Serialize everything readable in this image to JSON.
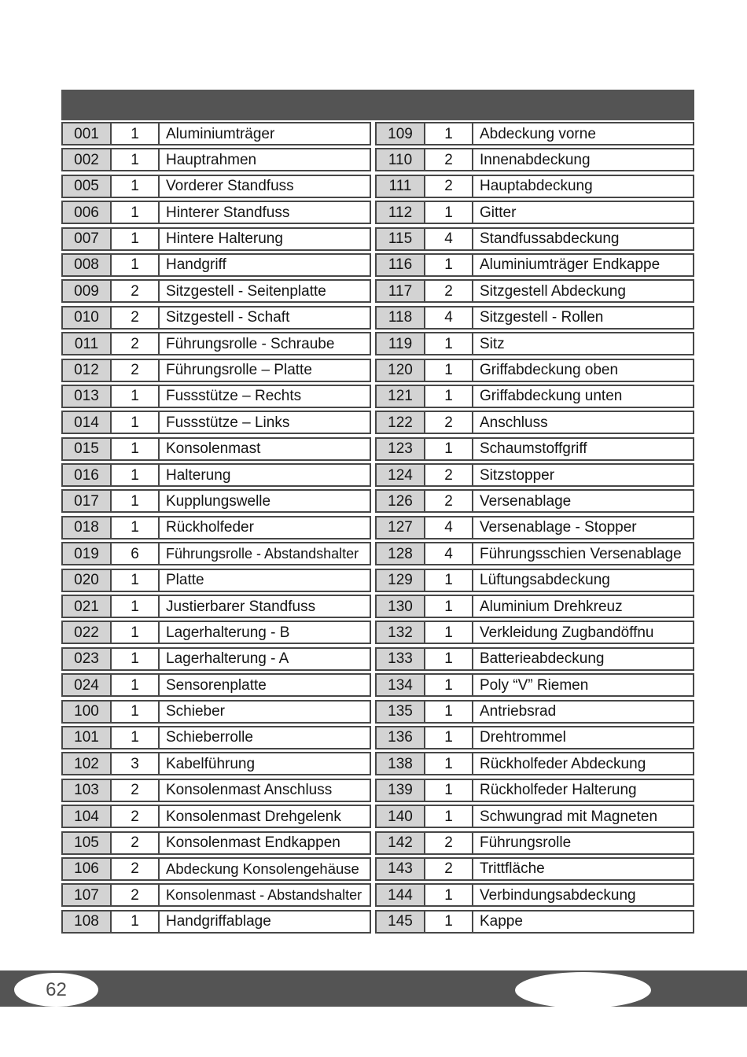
{
  "page": {
    "number": "62"
  },
  "colors": {
    "bar": "#545454",
    "row_border": "#474747",
    "number_cell_bg": "#d3d3d3",
    "text": "#141414"
  },
  "table": {
    "left_rows": [
      {
        "no": "001",
        "qty": "1",
        "desc": "Aluminiumträger"
      },
      {
        "no": "002",
        "qty": "1",
        "desc": "Hauptrahmen"
      },
      {
        "no": "005",
        "qty": "1",
        "desc": "Vorderer Standfuss"
      },
      {
        "no": "006",
        "qty": "1",
        "desc": "Hinterer Standfuss"
      },
      {
        "no": "007",
        "qty": "1",
        "desc": "Hintere Halterung"
      },
      {
        "no": "008",
        "qty": "1",
        "desc": "Handgriff"
      },
      {
        "no": "009",
        "qty": "2",
        "desc": "Sitzgestell - Seitenplatte"
      },
      {
        "no": "010",
        "qty": "2",
        "desc": "Sitzgestell - Schaft"
      },
      {
        "no": "011",
        "qty": "2",
        "desc": "Führungsrolle - Schraube"
      },
      {
        "no": "012",
        "qty": "2",
        "desc": "Führungsrolle – Platte"
      },
      {
        "no": "013",
        "qty": "1",
        "desc": "Fussstütze – Rechts"
      },
      {
        "no": "014",
        "qty": "1",
        "desc": "Fussstütze – Links"
      },
      {
        "no": "015",
        "qty": "1",
        "desc": "Konsolenmast"
      },
      {
        "no": "016",
        "qty": "1",
        "desc": "Halterung"
      },
      {
        "no": "017",
        "qty": "1",
        "desc": "Kupplungswelle"
      },
      {
        "no": "018",
        "qty": "1",
        "desc": "Rückholfeder"
      },
      {
        "no": "019",
        "qty": "6",
        "desc": "Führungsrolle - Abstandshalter"
      },
      {
        "no": "020",
        "qty": "1",
        "desc": "Platte"
      },
      {
        "no": "021",
        "qty": "1",
        "desc": "Justierbarer Standfuss"
      },
      {
        "no": "022",
        "qty": "1",
        "desc": "Lagerhalterung - B"
      },
      {
        "no": "023",
        "qty": "1",
        "desc": "Lagerhalterung - A"
      },
      {
        "no": "024",
        "qty": "1",
        "desc": "Sensorenplatte"
      },
      {
        "no": "100",
        "qty": "1",
        "desc": "Schieber"
      },
      {
        "no": "101",
        "qty": "1",
        "desc": "Schieberrolle"
      },
      {
        "no": "102",
        "qty": "3",
        "desc": "Kabelführung"
      },
      {
        "no": "103",
        "qty": "2",
        "desc": "Konsolenmast Anschluss"
      },
      {
        "no": "104",
        "qty": "2",
        "desc": "Konsolenmast Drehgelenk"
      },
      {
        "no": "105",
        "qty": "2",
        "desc": "Konsolenmast Endkappen"
      },
      {
        "no": "106",
        "qty": "2",
        "desc": "Abdeckung Konsolengehäuse"
      },
      {
        "no": "107",
        "qty": "2",
        "desc": "Konsolenmast - Abstandshalter"
      },
      {
        "no": "108",
        "qty": "1",
        "desc": "Handgriffablage"
      }
    ],
    "right_rows": [
      {
        "no": "109",
        "qty": "1",
        "desc": "Abdeckung vorne"
      },
      {
        "no": "110",
        "qty": "2",
        "desc": "Innenabdeckung"
      },
      {
        "no": "111",
        "qty": "2",
        "desc": "Hauptabdeckung"
      },
      {
        "no": "112",
        "qty": "1",
        "desc": "Gitter"
      },
      {
        "no": "115",
        "qty": "4",
        "desc": "Standfussabdeckung"
      },
      {
        "no": "116",
        "qty": "1",
        "desc": "Aluminiumträger Endkappe"
      },
      {
        "no": "117",
        "qty": "2",
        "desc": "Sitzgestell Abdeckung"
      },
      {
        "no": "118",
        "qty": "4",
        "desc": "Sitzgestell - Rollen"
      },
      {
        "no": "119",
        "qty": "1",
        "desc": "Sitz"
      },
      {
        "no": "120",
        "qty": "1",
        "desc": "Griffabdeckung oben"
      },
      {
        "no": "121",
        "qty": "1",
        "desc": "Griffabdeckung unten"
      },
      {
        "no": "122",
        "qty": "2",
        "desc": "Anschluss"
      },
      {
        "no": "123",
        "qty": "1",
        "desc": "Schaumstoffgriff"
      },
      {
        "no": "124",
        "qty": "2",
        "desc": "Sitzstopper"
      },
      {
        "no": "126",
        "qty": "2",
        "desc": "Versenablage"
      },
      {
        "no": "127",
        "qty": "4",
        "desc": "Versenablage - Stopper"
      },
      {
        "no": "128",
        "qty": "4",
        "desc": "Führungsschien Versenablage"
      },
      {
        "no": "129",
        "qty": "1",
        "desc": "Lüftungsabdeckung"
      },
      {
        "no": "130",
        "qty": "1",
        "desc": "Aluminium Drehkreuz"
      },
      {
        "no": "132",
        "qty": "1",
        "desc": "Verkleidung Zugbandöffnu"
      },
      {
        "no": "133",
        "qty": "1",
        "desc": "Batterieabdeckung"
      },
      {
        "no": "134",
        "qty": "1",
        "desc": "Poly “V” Riemen"
      },
      {
        "no": "135",
        "qty": "1",
        "desc": "Antriebsrad"
      },
      {
        "no": "136",
        "qty": "1",
        "desc": "Drehtrommel"
      },
      {
        "no": "138",
        "qty": "1",
        "desc": "Rückholfeder Abdeckung"
      },
      {
        "no": "139",
        "qty": "1",
        "desc": "Rückholfeder Halterung"
      },
      {
        "no": "140",
        "qty": "1",
        "desc": "Schwungrad mit Magneten"
      },
      {
        "no": "142",
        "qty": "2",
        "desc": "Führungsrolle"
      },
      {
        "no": "143",
        "qty": "2",
        "desc": "Trittfläche"
      },
      {
        "no": "144",
        "qty": "1",
        "desc": "Verbindungsabdeckung"
      },
      {
        "no": "145",
        "qty": "1",
        "desc": "Kappe"
      }
    ]
  }
}
